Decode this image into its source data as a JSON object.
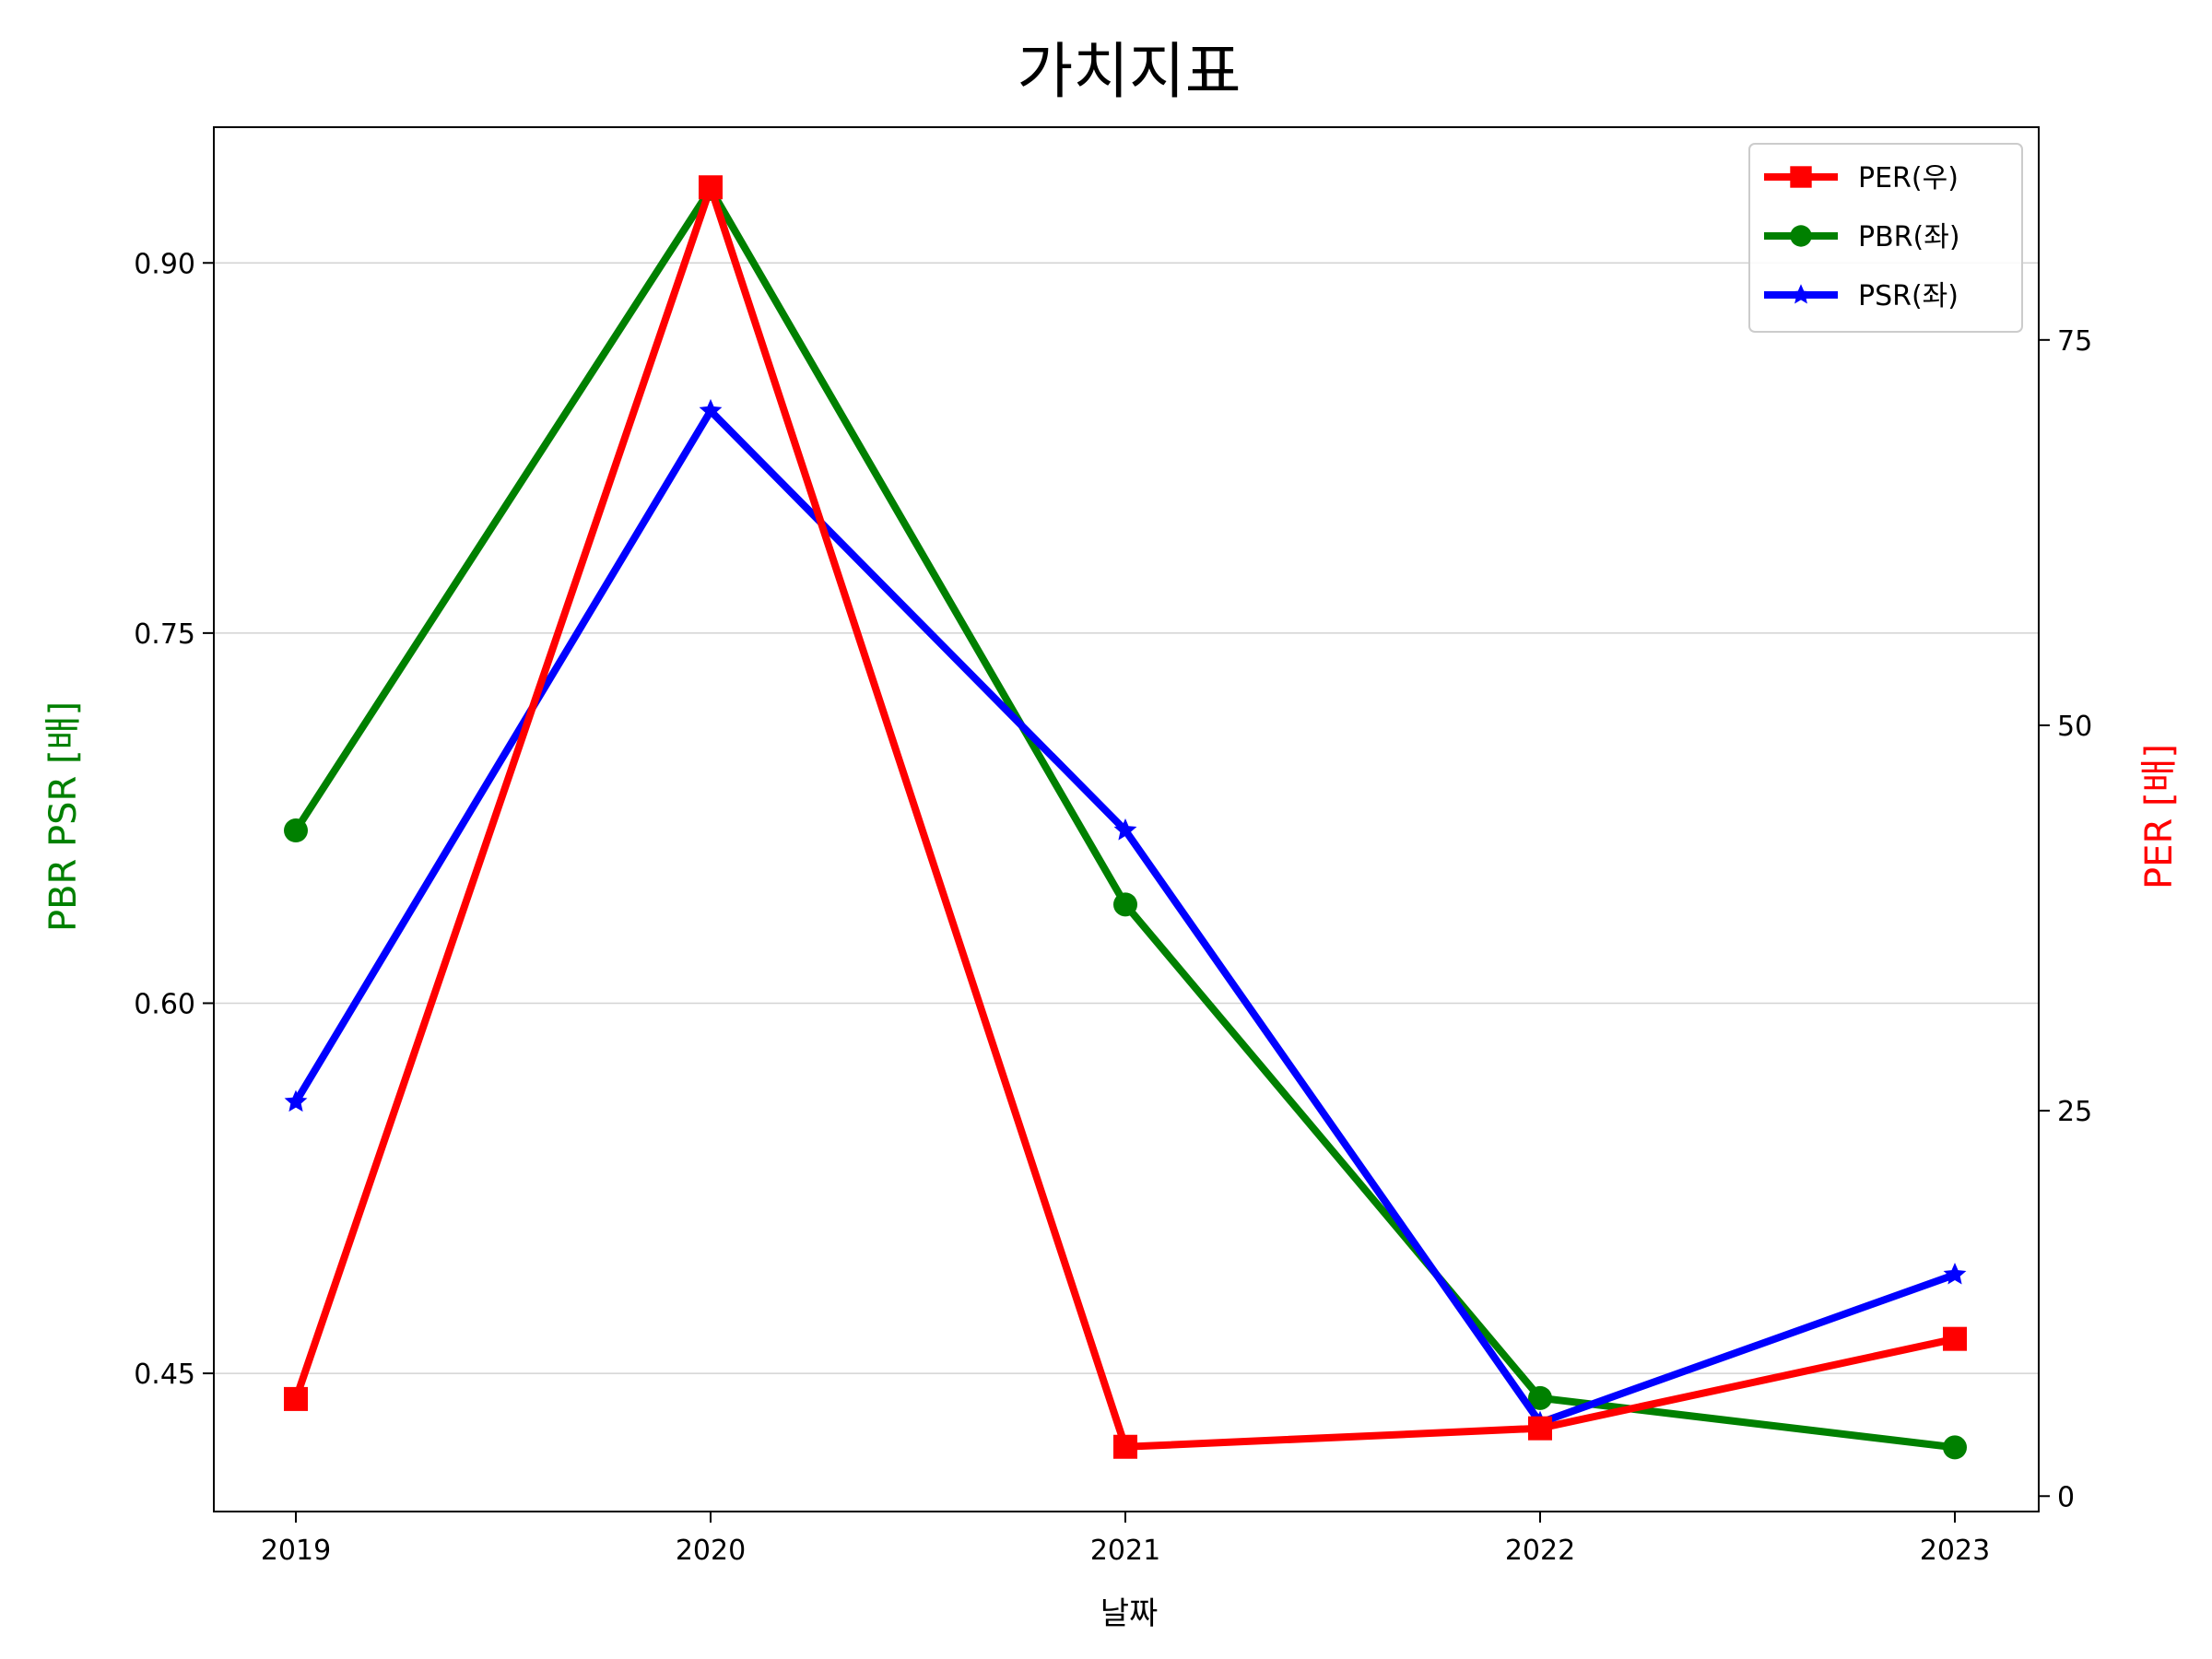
{
  "chart_data": {
    "type": "line",
    "title": "가치지표",
    "xlabel": "날짜",
    "ylabel_left": "PBR PSR [배]",
    "ylabel_right": "PER [배]",
    "categories": [
      "2019",
      "2020",
      "2021",
      "2022",
      "2023"
    ],
    "left_axis": {
      "ticks": [
        0.45,
        0.6,
        0.75,
        0.9
      ],
      "tick_labels": [
        "0.45",
        "0.60",
        "0.75",
        "0.90"
      ],
      "ylim": [
        0.394,
        0.955
      ]
    },
    "right_axis": {
      "ticks": [
        0,
        25,
        50,
        75
      ],
      "tick_labels": [
        "0",
        "25",
        "50",
        "75"
      ],
      "ylim": [
        -1.0,
        88.8
      ]
    },
    "grid": "horizontal",
    "legend_position": "top-right",
    "series": [
      {
        "name": "PER(우)",
        "axis": "right",
        "color": "#ff0000",
        "marker": "square",
        "values": [
          6.3,
          84.9,
          3.2,
          4.4,
          10.2
        ]
      },
      {
        "name": "PBR(좌)",
        "axis": "left",
        "color": "#008000",
        "marker": "circle",
        "values": [
          0.67,
          0.93,
          0.64,
          0.44,
          0.42
        ]
      },
      {
        "name": "PSR(좌)",
        "axis": "left",
        "color": "#0000ff",
        "marker": "star",
        "values": [
          0.56,
          0.84,
          0.67,
          0.43,
          0.49
        ]
      }
    ]
  }
}
